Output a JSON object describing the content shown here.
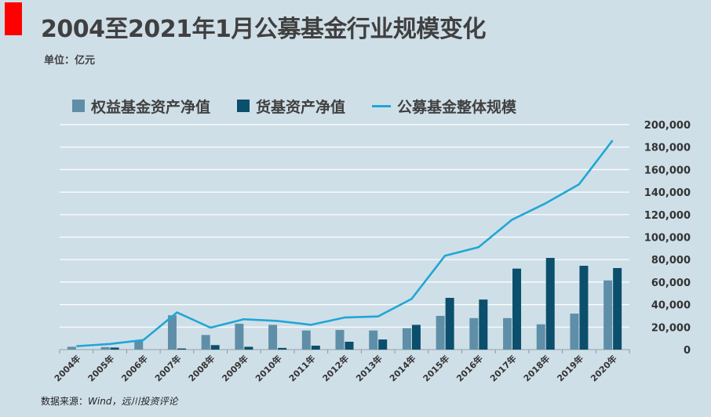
{
  "header": {
    "title": "2004至2021年1月公募基金行业规模变化",
    "unit": "单位：亿元"
  },
  "footer": {
    "source_prefix": "数据来源：",
    "source_text": "Wind，远川投资评论"
  },
  "colors": {
    "accent": "#ff0000",
    "equity": "#5f8fa8",
    "money": "#0b4f6c",
    "total": "#21a6d6",
    "background": "#cfdfe8"
  },
  "chart_data": {
    "type": "bar",
    "title": "2004至2021年1月公募基金行业规模变化",
    "ylabel": "单位：亿元",
    "ylim": [
      0,
      200000
    ],
    "yticks": [
      "0",
      "20,000",
      "40,000",
      "60,000",
      "80,000",
      "100,000",
      "120,000",
      "140,000",
      "160,000",
      "180,000",
      "200,000"
    ],
    "grid": true,
    "legend_position": "top",
    "categories": [
      "2004年",
      "2005年",
      "2006年",
      "2007年",
      "2008年",
      "2009年",
      "2010年",
      "2011年",
      "2012年",
      "2013年",
      "2014年",
      "2015年",
      "2016年",
      "2017年",
      "2018年",
      "2019年",
      "2020年"
    ],
    "series": [
      {
        "name": "权益基金资产净值",
        "kind": "bar",
        "color": "#5f8fa8",
        "values": [
          2500,
          2200,
          8000,
          30500,
          13000,
          23000,
          22000,
          17000,
          17500,
          17000,
          19000,
          30000,
          28000,
          28000,
          22500,
          32000,
          61500
        ]
      },
      {
        "name": "货基资产净值",
        "kind": "bar",
        "color": "#0b4f6c",
        "values": [
          0,
          1800,
          0,
          1000,
          4000,
          2500,
          1500,
          3500,
          7000,
          9000,
          22000,
          46000,
          44500,
          72000,
          81500,
          74500,
          72500
        ]
      },
      {
        "name": "公募基金整体规模",
        "kind": "line",
        "color": "#21a6d6",
        "values": [
          3000,
          5000,
          8500,
          33000,
          19500,
          27000,
          25500,
          22000,
          28500,
          29500,
          45000,
          83500,
          91000,
          115500,
          130000,
          147000,
          186000
        ]
      }
    ]
  }
}
